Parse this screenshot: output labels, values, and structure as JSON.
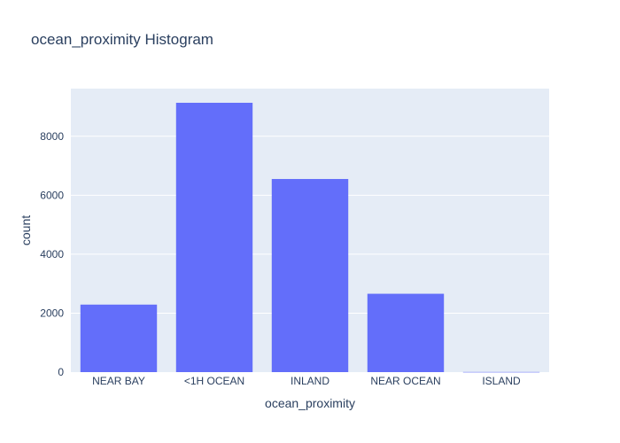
{
  "chart_data": {
    "type": "bar",
    "title": "ocean_proximity Histogram",
    "xlabel": "ocean_proximity",
    "ylabel": "count",
    "categories": [
      "NEAR BAY",
      "<1H OCEAN",
      "INLAND",
      "NEAR OCEAN",
      "ISLAND"
    ],
    "values": [
      2290,
      9136,
      6551,
      2658,
      5
    ],
    "ylim": [
      0,
      9617
    ],
    "yticks": [
      0,
      2000,
      4000,
      6000,
      8000
    ],
    "ytick_labels": [
      "0",
      "2000",
      "4000",
      "6000",
      "8000"
    ],
    "grid": true,
    "colors": {
      "bar": "#636efa",
      "plot_bg": "#e5ecf6",
      "grid": "#ffffff",
      "text": "#2a3f5f",
      "paper_bg": "#ffffff"
    }
  }
}
